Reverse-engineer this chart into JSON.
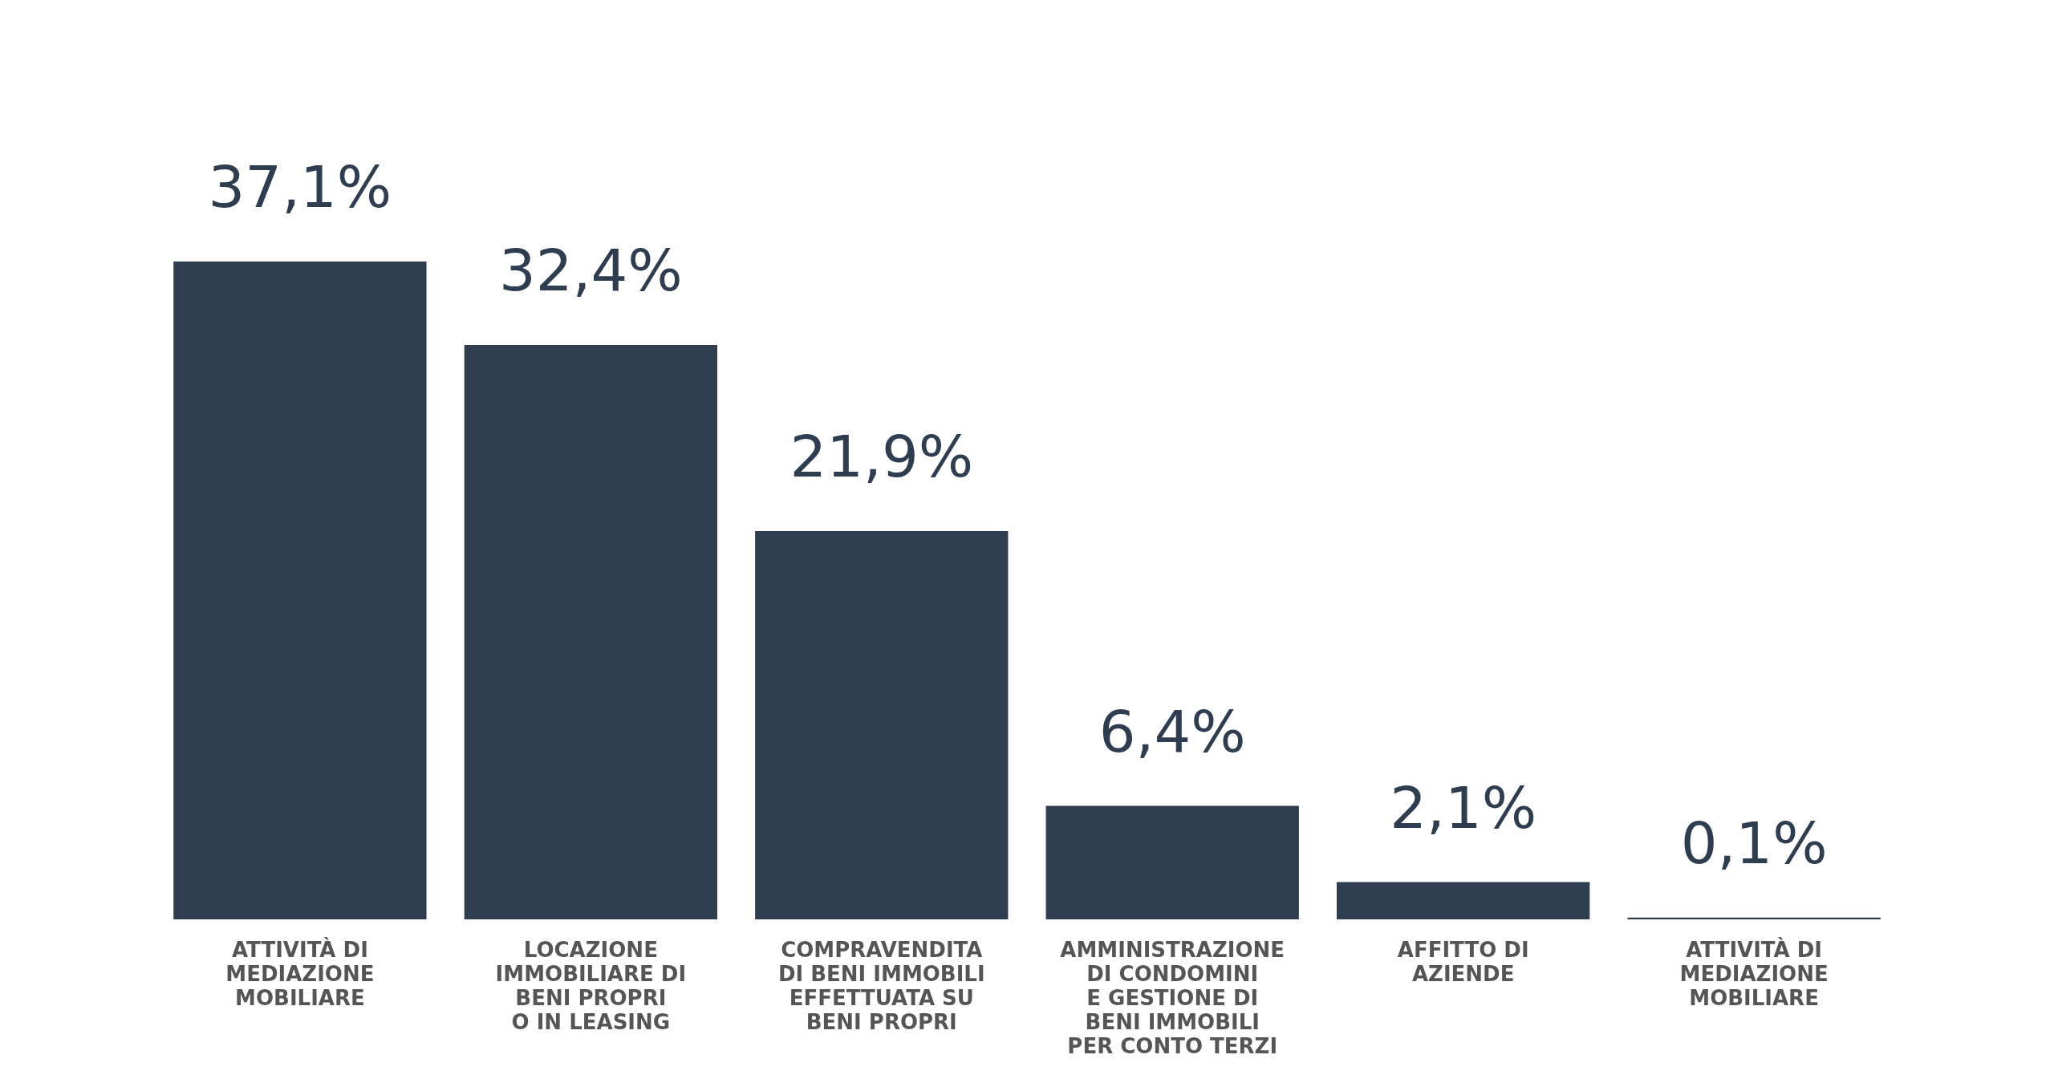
{
  "chart_data": {
    "type": "bar",
    "categories": [
      "ATTIVITÀ DI\nMEDIAZIONE\nMOBILIARE",
      "LOCAZIONE\nIMMOBILIARE DI\nBENI PROPRI\nO IN LEASING",
      "COMPRAVENDITA\nDI BENI IMMOBILI\nEFFETTUATA SU\nBENI PROPRI",
      "AMMINISTRAZIONE\nDI CONDOMINI\nE GESTIONE DI\nBENI IMMOBILI\nPER CONTO TERZI",
      "AFFITTO DI\nAZIENDE",
      "ATTIVITÀ DI\nMEDIAZIONE\nMOBILIARE"
    ],
    "values": [
      37.1,
      32.4,
      21.9,
      6.4,
      2.1,
      0.1
    ],
    "value_labels": [
      "37,1%",
      "32,4%",
      "21,9%",
      "6,4%",
      "2,1%",
      "0,1%"
    ],
    "color": "#2e3e50",
    "grid": false
  }
}
